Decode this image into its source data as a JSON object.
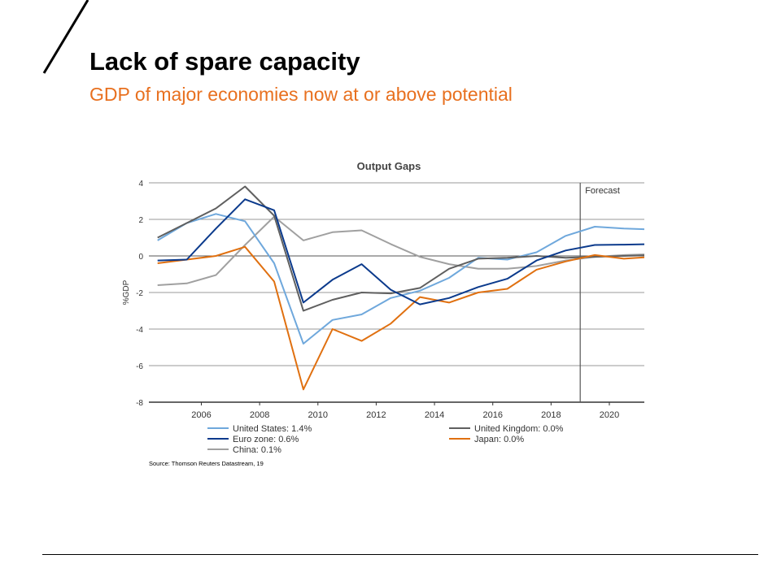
{
  "slide": {
    "title": "Lack of spare capacity",
    "subtitle": "GDP of major economies now at or above potential",
    "accent_color": "#e8701f"
  },
  "chart_data": {
    "type": "line",
    "title": "Output Gaps",
    "ylabel": "%GDP",
    "xlabel": "",
    "xlim": [
      2004.2,
      2021.2
    ],
    "ylim": [
      -8,
      4
    ],
    "yticks": [
      4,
      2,
      0,
      -2,
      -4,
      -6,
      -8
    ],
    "xticks": [
      2006,
      2008,
      2010,
      2012,
      2014,
      2016,
      2018,
      2020
    ],
    "grid": true,
    "forecast_marker": {
      "x": 2019,
      "label": "Forecast"
    },
    "legend_position": "bottom",
    "x": [
      2004.5,
      2005.5,
      2006.5,
      2007.5,
      2008.5,
      2009.5,
      2010.5,
      2011.5,
      2012.5,
      2013.5,
      2014.5,
      2015.5,
      2016.5,
      2017.5,
      2018.5,
      2019.5,
      2020.5,
      2021.5
    ],
    "series": [
      {
        "name": "United States: 1.4%",
        "color": "#6fa8dc",
        "values": [
          0.85,
          1.8,
          2.3,
          1.9,
          -0.4,
          -4.8,
          -3.5,
          -3.2,
          -2.3,
          -1.9,
          -1.2,
          -0.1,
          -0.2,
          0.2,
          1.1,
          1.6,
          1.5,
          1.45
        ]
      },
      {
        "name": "United Kingdom: 0.0%",
        "color": "#5f5f5f",
        "values": [
          1.0,
          1.8,
          2.6,
          3.8,
          2.2,
          -3.0,
          -2.4,
          -2.0,
          -2.05,
          -1.75,
          -0.7,
          -0.15,
          -0.1,
          0.0,
          -0.1,
          -0.05,
          0.0,
          0.05
        ]
      },
      {
        "name": "Euro zone: 0.6%",
        "color": "#0b3a8c",
        "values": [
          -0.25,
          -0.2,
          1.5,
          3.1,
          2.5,
          -2.55,
          -1.3,
          -0.45,
          -1.85,
          -2.65,
          -2.3,
          -1.7,
          -1.25,
          -0.25,
          0.3,
          0.6,
          0.62,
          0.65
        ]
      },
      {
        "name": "Japan: 0.0%",
        "color": "#e07010",
        "values": [
          -0.4,
          -0.2,
          0.0,
          0.5,
          -1.4,
          -7.3,
          -4.0,
          -4.65,
          -3.7,
          -2.25,
          -2.55,
          -2.0,
          -1.8,
          -0.75,
          -0.3,
          0.05,
          -0.15,
          -0.05
        ]
      },
      {
        "name": "China: 0.1%",
        "color": "#a0a0a0",
        "values": [
          -1.6,
          -1.5,
          -1.05,
          0.6,
          2.15,
          0.85,
          1.3,
          1.4,
          0.65,
          -0.05,
          -0.45,
          -0.7,
          -0.7,
          -0.55,
          -0.25,
          -0.05,
          0.05,
          0.1
        ]
      }
    ],
    "source": "Source: Thomson Reuters Datastream, 19"
  }
}
